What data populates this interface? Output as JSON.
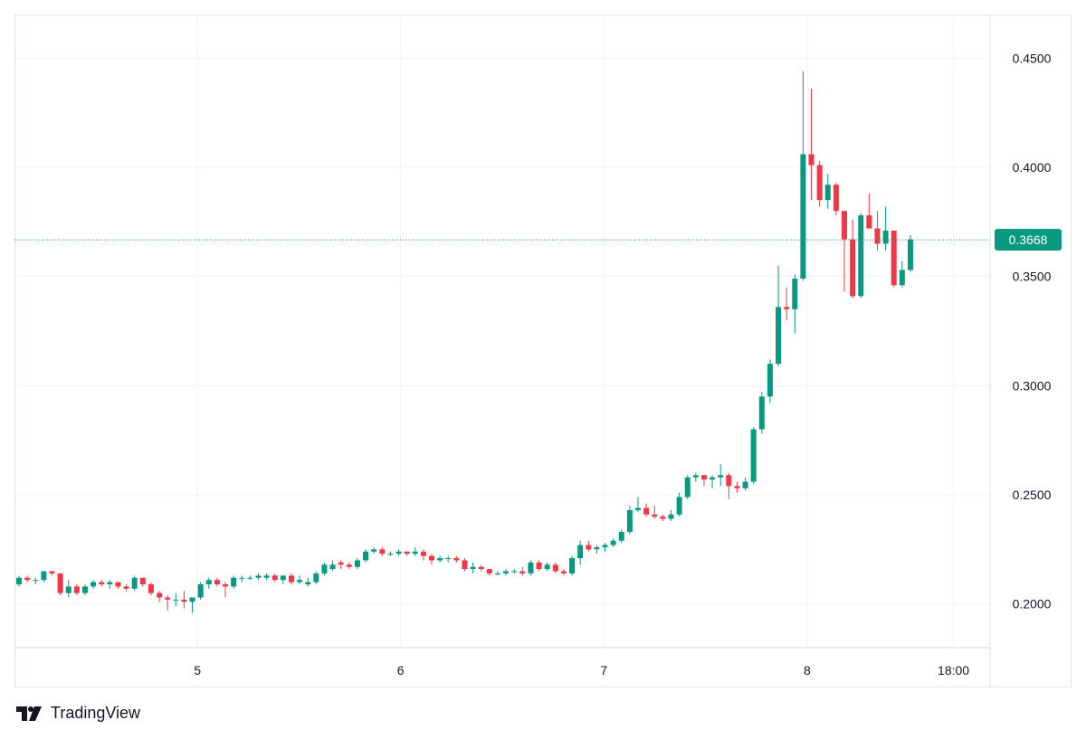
{
  "brand": {
    "name": "TradingView",
    "icon": "tradingview-logo-icon"
  },
  "colors": {
    "up": "#089981",
    "down": "#f23645",
    "grid": "#f0f3fa",
    "axis_text": "#131722",
    "last_price_line": "#089981"
  },
  "chart_data": {
    "type": "candlestick",
    "title": "",
    "xlabel": "",
    "ylabel": "",
    "ylim": [
      0.18,
      0.47
    ],
    "y_ticks": [
      "0.4500",
      "0.4000",
      "0.3500",
      "0.3000",
      "0.2500",
      "0.2000"
    ],
    "x_ticks": [
      {
        "label": "5",
        "x": 9
      },
      {
        "label": "6",
        "x": 34
      },
      {
        "label": "7",
        "x": 59
      },
      {
        "label": "8",
        "x": 84
      },
      {
        "label": "18:00",
        "x": 102
      }
    ],
    "x_range": [
      -13.5,
      106.5
    ],
    "grid": true,
    "last_price": 0.3668,
    "last_price_label": "0.3668",
    "candles": [
      [
        0.209,
        0.213,
        0.208,
        0.212
      ],
      [
        0.212,
        0.213,
        0.21,
        0.211
      ],
      [
        0.211,
        0.212,
        0.209,
        0.211
      ],
      [
        0.211,
        0.215,
        0.21,
        0.215
      ],
      [
        0.215,
        0.215,
        0.213,
        0.214
      ],
      [
        0.214,
        0.214,
        0.204,
        0.205
      ],
      [
        0.205,
        0.211,
        0.203,
        0.208
      ],
      [
        0.208,
        0.209,
        0.204,
        0.205
      ],
      [
        0.205,
        0.209,
        0.204,
        0.208
      ],
      [
        0.208,
        0.211,
        0.207,
        0.21
      ],
      [
        0.21,
        0.211,
        0.208,
        0.209
      ],
      [
        0.209,
        0.211,
        0.207,
        0.21
      ],
      [
        0.21,
        0.21,
        0.207,
        0.208
      ],
      [
        0.208,
        0.209,
        0.206,
        0.207
      ],
      [
        0.207,
        0.213,
        0.206,
        0.212
      ],
      [
        0.212,
        0.212,
        0.208,
        0.209
      ],
      [
        0.209,
        0.21,
        0.204,
        0.205
      ],
      [
        0.205,
        0.206,
        0.201,
        0.203
      ],
      [
        0.203,
        0.204,
        0.197,
        0.202
      ],
      [
        0.202,
        0.205,
        0.199,
        0.202
      ],
      [
        0.202,
        0.206,
        0.198,
        0.201
      ],
      [
        0.201,
        0.203,
        0.196,
        0.203
      ],
      [
        0.203,
        0.21,
        0.202,
        0.209
      ],
      [
        0.209,
        0.212,
        0.207,
        0.211
      ],
      [
        0.211,
        0.212,
        0.208,
        0.209
      ],
      [
        0.209,
        0.21,
        0.203,
        0.208
      ],
      [
        0.208,
        0.213,
        0.207,
        0.212
      ],
      [
        0.212,
        0.213,
        0.21,
        0.212
      ],
      [
        0.212,
        0.213,
        0.211,
        0.212
      ],
      [
        0.212,
        0.214,
        0.211,
        0.213
      ],
      [
        0.212,
        0.214,
        0.211,
        0.213
      ],
      [
        0.213,
        0.214,
        0.21,
        0.211
      ],
      [
        0.211,
        0.213,
        0.209,
        0.213
      ],
      [
        0.213,
        0.214,
        0.209,
        0.21
      ],
      [
        0.21,
        0.213,
        0.209,
        0.211
      ],
      [
        0.209,
        0.212,
        0.208,
        0.21
      ],
      [
        0.21,
        0.215,
        0.209,
        0.214
      ],
      [
        0.214,
        0.219,
        0.213,
        0.218
      ],
      [
        0.216,
        0.22,
        0.215,
        0.218
      ],
      [
        0.219,
        0.22,
        0.216,
        0.218
      ],
      [
        0.218,
        0.219,
        0.216,
        0.217
      ],
      [
        0.217,
        0.221,
        0.216,
        0.22
      ],
      [
        0.22,
        0.225,
        0.219,
        0.224
      ],
      [
        0.224,
        0.226,
        0.223,
        0.225
      ],
      [
        0.225,
        0.226,
        0.222,
        0.223
      ],
      [
        0.223,
        0.224,
        0.222,
        0.223
      ],
      [
        0.223,
        0.225,
        0.222,
        0.224
      ],
      [
        0.224,
        0.224,
        0.222,
        0.223
      ],
      [
        0.223,
        0.226,
        0.222,
        0.224
      ],
      [
        0.224,
        0.225,
        0.22,
        0.222
      ],
      [
        0.222,
        0.223,
        0.218,
        0.22
      ],
      [
        0.22,
        0.222,
        0.219,
        0.221
      ],
      [
        0.221,
        0.222,
        0.219,
        0.221
      ],
      [
        0.221,
        0.222,
        0.219,
        0.22
      ],
      [
        0.22,
        0.221,
        0.215,
        0.216
      ],
      [
        0.216,
        0.219,
        0.214,
        0.217
      ],
      [
        0.217,
        0.218,
        0.215,
        0.216
      ],
      [
        0.216,
        0.216,
        0.213,
        0.214
      ],
      [
        0.214,
        0.215,
        0.213,
        0.214
      ],
      [
        0.214,
        0.216,
        0.213,
        0.215
      ],
      [
        0.215,
        0.216,
        0.214,
        0.215
      ],
      [
        0.215,
        0.217,
        0.213,
        0.214
      ],
      [
        0.214,
        0.22,
        0.213,
        0.219
      ],
      [
        0.219,
        0.22,
        0.215,
        0.216
      ],
      [
        0.216,
        0.219,
        0.215,
        0.218
      ],
      [
        0.218,
        0.219,
        0.214,
        0.215
      ],
      [
        0.215,
        0.216,
        0.213,
        0.214
      ],
      [
        0.214,
        0.222,
        0.213,
        0.221
      ],
      [
        0.221,
        0.229,
        0.218,
        0.227
      ],
      [
        0.227,
        0.229,
        0.224,
        0.225
      ],
      [
        0.225,
        0.227,
        0.223,
        0.226
      ],
      [
        0.226,
        0.228,
        0.224,
        0.227
      ],
      [
        0.227,
        0.23,
        0.226,
        0.229
      ],
      [
        0.229,
        0.234,
        0.228,
        0.233
      ],
      [
        0.233,
        0.245,
        0.232,
        0.243
      ],
      [
        0.243,
        0.249,
        0.242,
        0.244
      ],
      [
        0.244,
        0.246,
        0.24,
        0.241
      ],
      [
        0.241,
        0.245,
        0.239,
        0.24
      ],
      [
        0.24,
        0.241,
        0.238,
        0.239
      ],
      [
        0.239,
        0.243,
        0.238,
        0.241
      ],
      [
        0.241,
        0.251,
        0.24,
        0.249
      ],
      [
        0.249,
        0.259,
        0.248,
        0.258
      ],
      [
        0.258,
        0.26,
        0.256,
        0.259
      ],
      [
        0.259,
        0.259,
        0.254,
        0.257
      ],
      [
        0.257,
        0.259,
        0.253,
        0.258
      ],
      [
        0.258,
        0.264,
        0.254,
        0.259
      ],
      [
        0.259,
        0.26,
        0.248,
        0.254
      ],
      [
        0.254,
        0.256,
        0.251,
        0.253
      ],
      [
        0.253,
        0.258,
        0.252,
        0.256
      ],
      [
        0.256,
        0.281,
        0.255,
        0.28
      ],
      [
        0.28,
        0.297,
        0.278,
        0.295
      ],
      [
        0.295,
        0.312,
        0.292,
        0.31
      ],
      [
        0.31,
        0.355,
        0.309,
        0.336
      ],
      [
        0.336,
        0.345,
        0.33,
        0.335
      ],
      [
        0.335,
        0.351,
        0.324,
        0.349
      ],
      [
        0.349,
        0.444,
        0.348,
        0.406
      ],
      [
        0.406,
        0.436,
        0.385,
        0.401
      ],
      [
        0.401,
        0.403,
        0.382,
        0.385
      ],
      [
        0.385,
        0.397,
        0.381,
        0.392
      ],
      [
        0.392,
        0.393,
        0.378,
        0.38
      ],
      [
        0.38,
        0.38,
        0.343,
        0.367
      ],
      [
        0.367,
        0.376,
        0.34,
        0.341
      ],
      [
        0.341,
        0.379,
        0.34,
        0.378
      ],
      [
        0.378,
        0.388,
        0.372,
        0.372
      ],
      [
        0.372,
        0.38,
        0.362,
        0.365
      ],
      [
        0.365,
        0.382,
        0.362,
        0.371
      ],
      [
        0.371,
        0.371,
        0.345,
        0.346
      ],
      [
        0.346,
        0.357,
        0.345,
        0.353
      ],
      [
        0.353,
        0.369,
        0.352,
        0.367
      ]
    ]
  }
}
